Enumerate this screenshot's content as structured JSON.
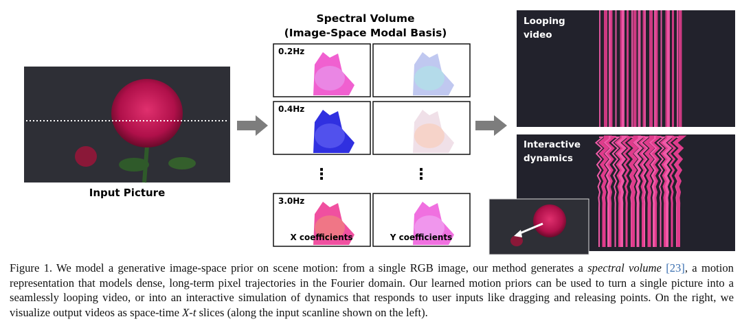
{
  "figure": {
    "input_label": "Input Picture",
    "spectral_title": [
      "Spectral Volume",
      "(Image-Space Modal Basis)"
    ],
    "frequencies": [
      "0.2Hz",
      "0.4Hz",
      "3.0Hz"
    ],
    "x_label": "X coefficients",
    "y_label": "Y coefficients",
    "looping_label": [
      "Looping",
      "video"
    ],
    "interactive_label": [
      "Interactive",
      "dynamics"
    ]
  },
  "caption": {
    "text_1": "Figure 1.  We model a generative image-space prior on scene motion: from a single RGB image, our method generates a ",
    "emphasis": "spectral volume",
    "citation": "[23]",
    "text_2": ", a motion representation that models dense, long-term pixel trajectories in the Fourier domain. Our learned motion priors can be used to turn a single picture into a seamlessly looping video, or into an interactive simulation of dynamics that responds to user inputs like dragging and releasing points. On the right, we visualize output videos as space-time ",
    "math": "X-t",
    "text_3": " slices (along the input scanline shown on the left)."
  }
}
